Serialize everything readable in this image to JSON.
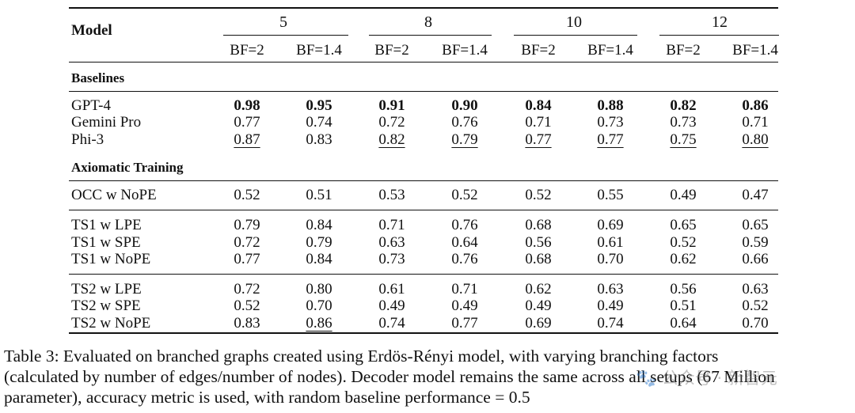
{
  "table": {
    "model_header": "Model",
    "groups": [
      "5",
      "8",
      "10",
      "12"
    ],
    "subheaders": [
      "BF=2",
      "BF=1.4",
      "BF=2",
      "BF=1.4",
      "BF=2",
      "BF=1.4",
      "BF=2",
      "BF=1.4"
    ],
    "sections": [
      {
        "title": "Baselines",
        "blocks": [
          [
            {
              "model": "GPT-4",
              "values": [
                "0.98",
                "0.95",
                "0.91",
                "0.90",
                "0.84",
                "0.88",
                "0.82",
                "0.86"
              ],
              "bold": [
                0,
                1,
                2,
                3,
                4,
                5,
                6,
                7
              ],
              "underline": []
            },
            {
              "model": "Gemini Pro",
              "values": [
                "0.77",
                "0.74",
                "0.72",
                "0.76",
                "0.71",
                "0.73",
                "0.73",
                "0.71"
              ],
              "bold": [],
              "underline": []
            },
            {
              "model": "Phi-3",
              "values": [
                "0.87",
                "0.83",
                "0.82",
                "0.79",
                "0.77",
                "0.77",
                "0.75",
                "0.80"
              ],
              "bold": [],
              "underline": [
                0,
                2,
                3,
                4,
                5,
                6,
                7
              ]
            }
          ]
        ]
      },
      {
        "title": "Axiomatic Training",
        "blocks": [
          [
            {
              "model": "OCC w NoPE",
              "values": [
                "0.52",
                "0.51",
                "0.53",
                "0.52",
                "0.52",
                "0.55",
                "0.49",
                "0.47"
              ],
              "bold": [],
              "underline": []
            }
          ],
          [
            {
              "model": "TS1 w LPE",
              "values": [
                "0.79",
                "0.84",
                "0.71",
                "0.76",
                "0.68",
                "0.69",
                "0.65",
                "0.65"
              ],
              "bold": [],
              "underline": []
            },
            {
              "model": "TS1 w SPE",
              "values": [
                "0.72",
                "0.79",
                "0.63",
                "0.64",
                "0.56",
                "0.61",
                "0.52",
                "0.59"
              ],
              "bold": [],
              "underline": []
            },
            {
              "model": "TS1 w NoPE",
              "values": [
                "0.77",
                "0.84",
                "0.73",
                "0.76",
                "0.68",
                "0.70",
                "0.62",
                "0.66"
              ],
              "bold": [],
              "underline": []
            }
          ],
          [
            {
              "model": "TS2 w LPE",
              "values": [
                "0.72",
                "0.80",
                "0.61",
                "0.71",
                "0.62",
                "0.63",
                "0.56",
                "0.63"
              ],
              "bold": [],
              "underline": []
            },
            {
              "model": "TS2 w SPE",
              "values": [
                "0.52",
                "0.70",
                "0.49",
                "0.49",
                "0.49",
                "0.49",
                "0.51",
                "0.52"
              ],
              "bold": [],
              "underline": []
            },
            {
              "model": "TS2 w NoPE",
              "values": [
                "0.83",
                "0.86",
                "0.74",
                "0.77",
                "0.69",
                "0.74",
                "0.64",
                "0.70"
              ],
              "bold": [],
              "underline": [
                1
              ]
            }
          ]
        ]
      }
    ]
  },
  "caption": {
    "line1": "Table 3:  Evaluated on branched graphs created using Erdös-Rényi model, with varying branching factors",
    "line2": "(calculated by number of edges/number of nodes). Decoder model remains the same across all setups (67 Million",
    "line3": "parameter), accuracy metric is used, with random baseline performance = 0.5"
  },
  "watermark": "🐾 公众号 · 新智元"
}
